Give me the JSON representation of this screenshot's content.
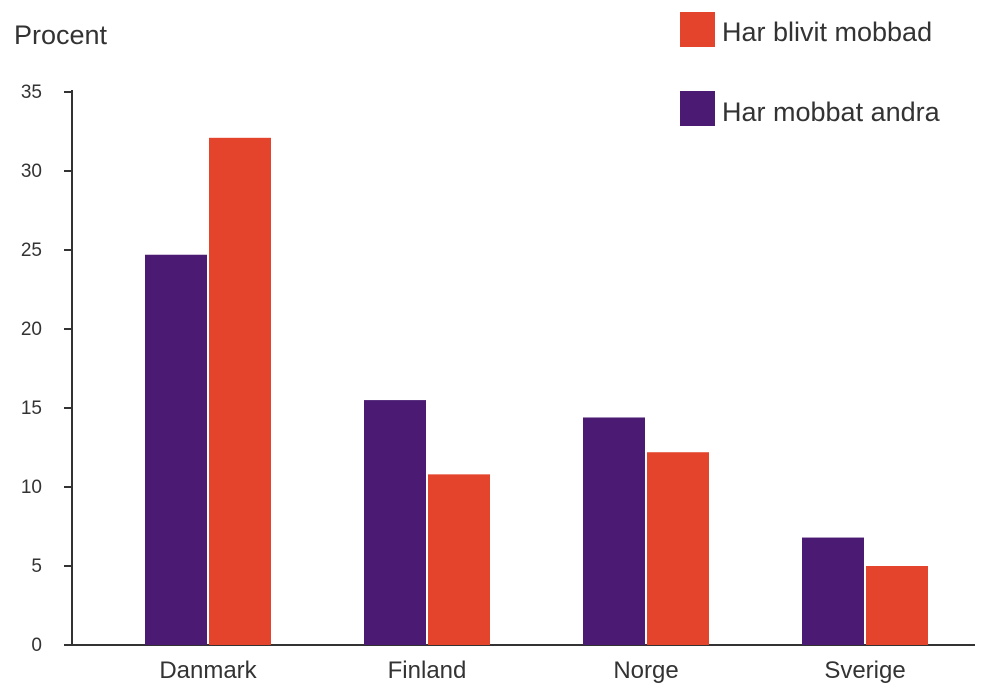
{
  "chart_data": {
    "type": "bar",
    "ylabel": "Procent",
    "xlabel": "",
    "categories": [
      "Danmark",
      "Finland",
      "Norge",
      "Sverige"
    ],
    "series": [
      {
        "name": "Har mobbat andra",
        "color": "#4b1a73",
        "values": [
          24.7,
          15.5,
          14.4,
          6.8
        ]
      },
      {
        "name": "Har blivit mobbad",
        "color": "#e3442b",
        "values": [
          32.1,
          10.8,
          12.2,
          5.0
        ]
      }
    ],
    "ylim": [
      0,
      35
    ],
    "yticks": [
      0,
      5,
      10,
      15,
      20,
      25,
      30,
      35
    ],
    "grid": false,
    "legend": {
      "placement": "top-right",
      "order": [
        "Har blivit mobbad",
        "Har mobbat andra"
      ]
    }
  }
}
